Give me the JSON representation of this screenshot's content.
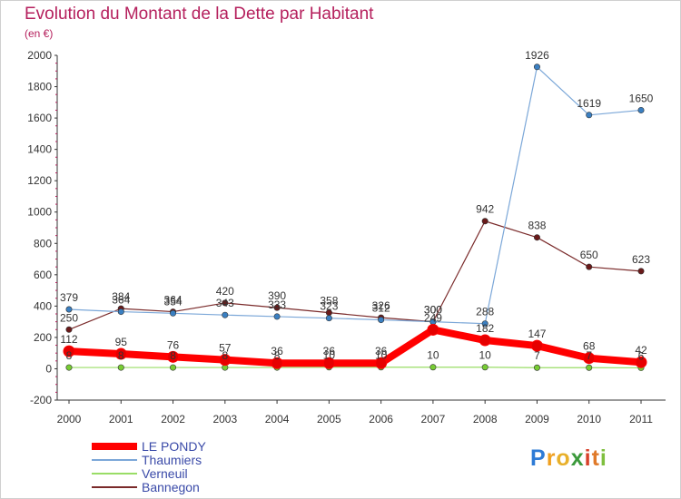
{
  "header": {
    "title": "Evolution du Montant de la Dette par Habitant",
    "subtitle": "(en €)"
  },
  "logo": {
    "text": "Proxiti",
    "letters": [
      {
        "ch": "P",
        "color": "#2e7bd6"
      },
      {
        "ch": "r",
        "color": "#f0a020"
      },
      {
        "ch": "o",
        "color": "#e8b02a"
      },
      {
        "ch": "x",
        "color": "#3c9a3c"
      },
      {
        "ch": "i",
        "color": "#d8402a"
      },
      {
        "ch": "t",
        "color": "#e07a2a"
      },
      {
        "ch": "i",
        "color": "#7fbf3f"
      }
    ]
  },
  "chart_data": {
    "type": "line",
    "title": "Evolution du Montant de la Dette par Habitant",
    "subtitle": "(en €)",
    "x": [
      2000,
      2001,
      2002,
      2003,
      2004,
      2005,
      2006,
      2007,
      2008,
      2009,
      2010,
      2011
    ],
    "ylim": [
      -200,
      2000
    ],
    "yticks": [
      -200,
      0,
      200,
      400,
      600,
      800,
      1000,
      1200,
      1400,
      1600,
      1800,
      2000
    ],
    "grid": false,
    "legend_position": "bottom-left",
    "series": [
      {
        "name": "LE PONDY",
        "color": "#ff0000",
        "marker_color": "#e60000",
        "width": 8,
        "values": [
          112,
          95,
          76,
          57,
          36,
          36,
          36,
          249,
          182,
          147,
          68,
          42
        ],
        "labels": [
          "112",
          "95",
          "76",
          "57",
          "36",
          "36",
          "36",
          "249",
          "182",
          "147",
          "68",
          "42"
        ],
        "label_color": "#333333"
      },
      {
        "name": "Thaumiers",
        "color": "#7ba7d8",
        "marker_color": "#3a7fc1",
        "width": 1.2,
        "values": [
          379,
          364,
          354,
          343,
          333,
          323,
          312,
          300,
          288,
          1926,
          1619,
          1650
        ],
        "labels": [
          "379",
          "364",
          "354",
          "343",
          "333",
          "323",
          "312",
          "300",
          "288",
          "1926",
          "1619",
          "1650"
        ],
        "label_color": "#333333"
      },
      {
        "name": "Verneuil",
        "color": "#99dd66",
        "marker_color": "#77cc33",
        "width": 1.2,
        "values": [
          8,
          8,
          8,
          8,
          8,
          10,
          10,
          10,
          10,
          7,
          7,
          6
        ],
        "labels": [
          "8",
          "8",
          "8",
          "8",
          "8",
          "10",
          "10",
          "10",
          "10",
          "7",
          "7",
          "6"
        ],
        "label_color": "#333333"
      },
      {
        "name": "Bannegon",
        "color": "#7a2a2a",
        "marker_color": "#6a1a1a",
        "width": 1.2,
        "values": [
          250,
          384,
          364,
          420,
          390,
          358,
          326,
          300,
          942,
          838,
          650,
          623
        ],
        "labels": [
          "250",
          "384",
          "364",
          "420",
          "390",
          "358",
          "326",
          "300",
          "942",
          "838",
          "650",
          "623"
        ],
        "label_color": "#333333"
      }
    ]
  }
}
